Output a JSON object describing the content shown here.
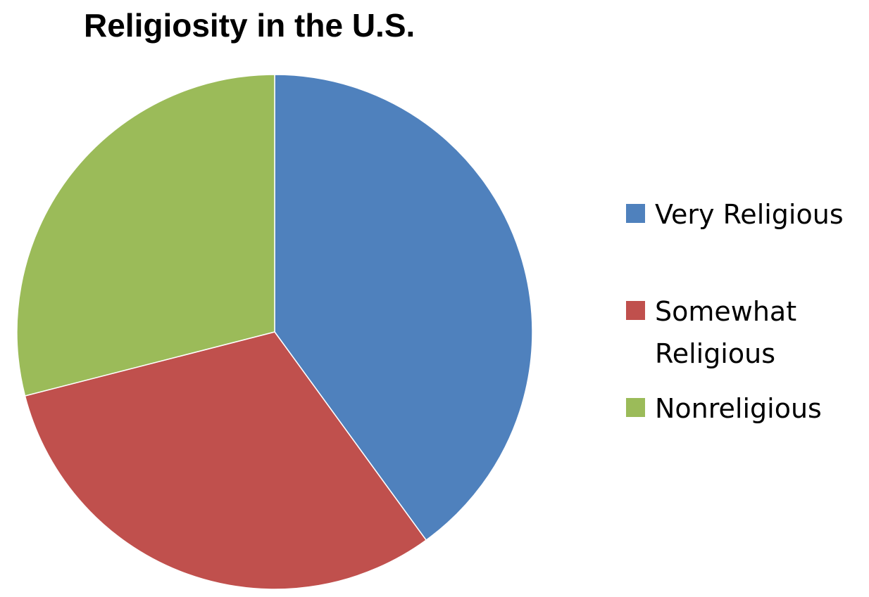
{
  "chart_data": {
    "type": "pie",
    "title": "Religiosity in the U.S.",
    "categories": [
      "Very Religious",
      "Somewhat Religious",
      "Nonreligious"
    ],
    "legend_lines": [
      [
        "Very Religious"
      ],
      [
        "Somewhat",
        "Religious"
      ],
      [
        "Nonreligious"
      ]
    ],
    "values": [
      40,
      31,
      29
    ],
    "colors": [
      "#4f81bd",
      "#c0504d",
      "#9bbb59"
    ],
    "start_angle_deg": 0,
    "direction": "clockwise",
    "legend_position": "right"
  }
}
